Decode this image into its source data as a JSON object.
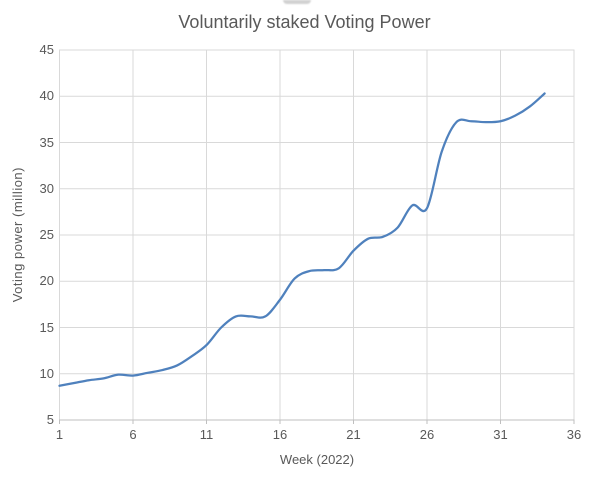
{
  "chart_data": {
    "type": "line",
    "title": "Voluntarily staked Voting Power",
    "xlabel": "Week (2022)",
    "ylabel": "Voting power (million)",
    "x": [
      1,
      2,
      3,
      4,
      5,
      6,
      7,
      8,
      9,
      10,
      11,
      12,
      13,
      14,
      15,
      16,
      17,
      18,
      19,
      20,
      21,
      22,
      23,
      24,
      25,
      26,
      27,
      28,
      29,
      30,
      31,
      32,
      33,
      34
    ],
    "values": [
      8.7,
      9.0,
      9.3,
      9.5,
      9.9,
      9.8,
      10.1,
      10.4,
      10.9,
      11.9,
      13.1,
      15.0,
      16.2,
      16.2,
      16.2,
      18.0,
      20.3,
      21.1,
      21.2,
      21.4,
      23.3,
      24.6,
      24.8,
      25.8,
      28.2,
      27.9,
      34.0,
      37.2,
      37.3,
      37.2,
      37.3,
      37.9,
      38.9,
      40.3
    ],
    "xlim": [
      1,
      36
    ],
    "ylim": [
      5,
      45
    ],
    "x_ticks": [
      1,
      6,
      11,
      16,
      21,
      26,
      31,
      36
    ],
    "y_ticks": [
      5,
      10,
      15,
      20,
      25,
      30,
      35,
      40,
      45
    ],
    "grid": true,
    "legend": "none",
    "smoothed": true,
    "colors": {
      "line": "#4F81BD",
      "grid": "#D9D9D9",
      "axis": "#BFBFBF",
      "text": "#595959",
      "title": "#595959"
    }
  }
}
